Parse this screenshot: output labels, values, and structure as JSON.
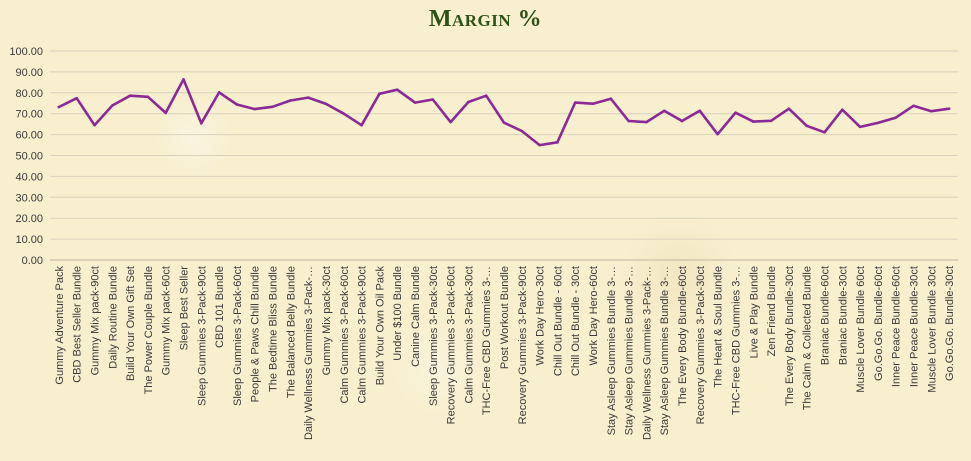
{
  "chart_data": {
    "type": "line",
    "title": "Margin %",
    "xlabel": "",
    "ylabel": "",
    "ylim": [
      0,
      100
    ],
    "yticks": [
      "0.00",
      "10.00",
      "20.00",
      "30.00",
      "40.00",
      "50.00",
      "60.00",
      "70.00",
      "80.00",
      "90.00",
      "100.00"
    ],
    "grid": true,
    "legend": "none",
    "colors": {
      "line": "#8b2a96",
      "grid": "#d8d2bd",
      "title": "#2f5016",
      "background": "#f8efcf"
    },
    "categories": [
      "Gummy Adventure Pack",
      "CBD Best Seller Bundle",
      "Gummy Mix pack-90ct",
      "Daily Routine Bundle",
      "Build Your Own Gift Set",
      "The Power Couple Bundle",
      "Gummy Mix pack-60ct",
      "Sleep Best Seller",
      "Sleep Gummies 3-Pack-90ct",
      "CBD 101 Bundle",
      "Sleep Gummies 3-Pack-60ct",
      "People & Paws Chill Bundle",
      "The Bedtime Bliss Bundle",
      "The Balanced Belly Bundle",
      "Daily Wellness Gummies 3-Pack-…",
      "Gummy Mix pack-30ct",
      "Calm Gummies 3-Pack-60ct",
      "Calm Gummies 3-Pack-90ct",
      "Build Your Own Oil Pack",
      "Under $100 Bundle",
      "Canine Calm Bundle",
      "Sleep Gummies 3-Pack-30ct",
      "Recovery Gummies 3-Pack-60ct",
      "Calm Gummies 3-Pack-30ct",
      "THC-Free CBD Gummies 3-…",
      "Post Workout Bundle",
      "Recovery Gummies 3-Pack-90ct",
      "Work Day Hero-30ct",
      "Chill Out Bundle - 60ct",
      "Chill Out Bundle - 30ct",
      "Work Day Hero-60ct",
      "Stay Asleep Gummies Bundle 3-…",
      "Stay Asleep Gummies Bundle 3-…",
      "Daily Wellness Gummies 3-Pack-…",
      "Stay Asleep Gummies Bundle 3-…",
      "The Every Body Bundle-60ct",
      "Recovery Gummies 3-Pack-30ct",
      "The Heart & Soul Bundle",
      "THC-Free CBD Gummies 3-…",
      "Live & Play Bundle",
      "Zen Friend Bundle",
      "The Every Body Bundle-30ct",
      "The Calm & Collected Bundle",
      "Braniac Bundle-60ct",
      "Braniac Bundle-30ct",
      "Muscle Lover Bundle 60ct",
      "Go.Go.Go. Bundle-60ct",
      "Inner Peace Bundle-60ct",
      "Inner Peace Bundle-30ct",
      "Muscle Lover Bundle 30ct",
      "Go.Go.Go. Bundle-30ct"
    ],
    "series": [
      {
        "values": [
          73.2,
          77.4,
          64.5,
          73.9,
          78.6,
          78.1,
          70.4,
          86.4,
          65.4,
          80.2,
          74.4,
          72.2,
          73.3,
          76.3,
          77.7,
          74.7,
          70.0,
          64.5,
          79.5,
          81.5,
          75.3,
          76.8,
          66.0,
          75.6,
          78.6,
          65.7,
          61.7,
          55.0,
          56.3,
          75.3,
          74.8,
          77.2,
          66.5,
          66.0,
          71.4,
          66.5,
          71.4,
          60.2,
          70.5,
          66.2,
          66.6,
          72.4,
          64.2,
          61.1,
          71.9,
          63.7,
          65.6,
          68.1,
          73.8,
          71.2,
          72.4
        ]
      }
    ]
  }
}
